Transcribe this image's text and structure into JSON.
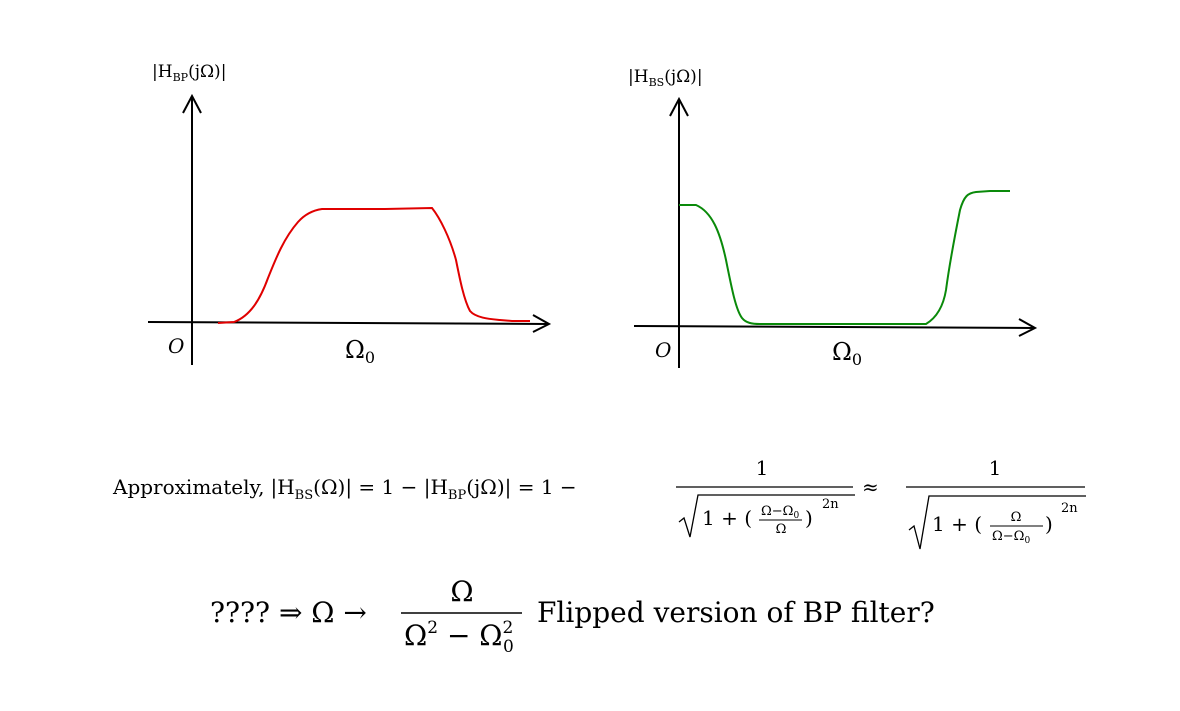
{
  "plots": {
    "bandpass": {
      "ylabel_base": "|H",
      "ylabel_sub": "BP",
      "ylabel_rest": "(jΩ)|",
      "origin": "O",
      "xmark_base": "Ω",
      "xmark_sub": "0",
      "color": "#e00000"
    },
    "bandstop": {
      "ylabel_base": "|H",
      "ylabel_sub": "BS",
      "ylabel_rest": "(jΩ)|",
      "origin": "O",
      "xmark_base": "Ω",
      "xmark_sub": "0",
      "color": "#0a8a0a"
    }
  },
  "equation1": {
    "prefix": "Approximately,",
    "lhs_base": "|H",
    "lhs_sub": "BS",
    "lhs_rest": "(Ω)| = 1 − |H",
    "mid_sub": "BP",
    "mid_rest": "(jΩ)| = 1 −",
    "frac1_num": "1",
    "frac1_inner": "1 + (",
    "frac1_small_num": "Ω−Ω",
    "frac1_small_num_sub": "0",
    "frac1_small_den": "Ω",
    "frac1_exp": "2n",
    "approx": "≈",
    "frac2_num": "1",
    "frac2_inner": "1 + (",
    "frac2_small_num": "Ω",
    "frac2_small_den": "Ω−Ω",
    "frac2_small_den_sub": "0",
    "frac2_exp": "2n"
  },
  "equation2": {
    "prefix": "???? ⇒ Ω →",
    "num": "Ω",
    "den_a": "Ω",
    "den_a_sup": "2",
    "den_b": " − Ω",
    "den_b_sup": "2",
    "den_b_sub": "0",
    "suffix": "Flipped version of BP filter?"
  }
}
